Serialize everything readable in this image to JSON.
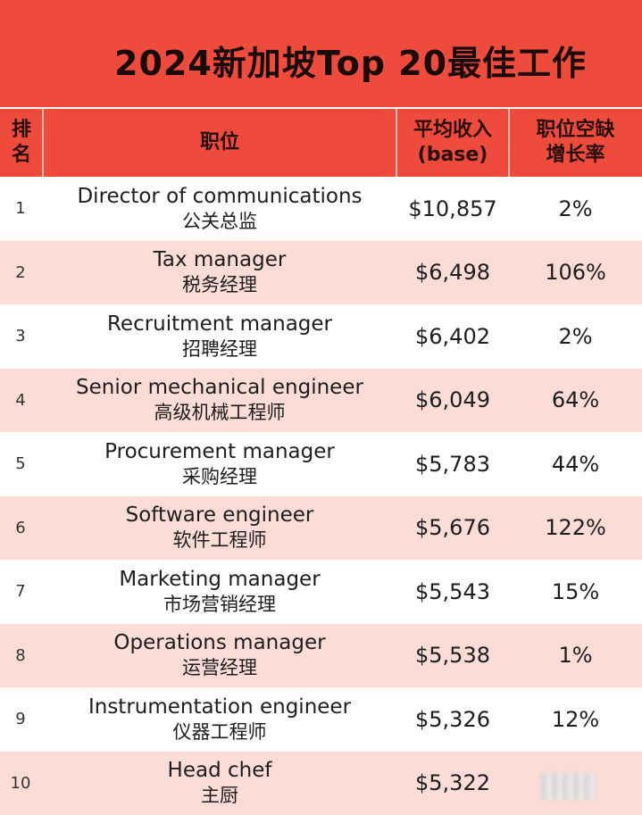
{
  "title": "2024新加坡Top 20最佳工作",
  "header": {
    "rank_line1": "排",
    "rank_line2": "名",
    "position": "职位",
    "salary_line1": "平均收入",
    "salary_line2": "(base)",
    "growth_line1": "职位空缺",
    "growth_line2": "增长率"
  },
  "rows": [
    {
      "rank": "1",
      "en": "Director of communications",
      "zh": "公关总监",
      "salary": "$10,857",
      "growth": "2%"
    },
    {
      "rank": "2",
      "en": "Tax manager",
      "zh": "税务经理",
      "salary": "$6,498",
      "growth": "106%"
    },
    {
      "rank": "3",
      "en": "Recruitment manager",
      "zh": "招聘经理",
      "salary": "$6,402",
      "growth": "2%"
    },
    {
      "rank": "4",
      "en": "Senior mechanical engineer",
      "zh": "高级机械工程师",
      "salary": "$6,049",
      "growth": "64%"
    },
    {
      "rank": "5",
      "en": "Procurement manager",
      "zh": "采购经理",
      "salary": "$5,783",
      "growth": "44%"
    },
    {
      "rank": "6",
      "en": "Software engineer",
      "zh": "软件工程师",
      "salary": "$5,676",
      "growth": "122%"
    },
    {
      "rank": "7",
      "en": "Marketing manager",
      "zh": "市场营销经理",
      "salary": "$5,543",
      "growth": "15%"
    },
    {
      "rank": "8",
      "en": "Operations manager",
      "zh": "运营经理",
      "salary": "$5,538",
      "growth": "1%"
    },
    {
      "rank": "9",
      "en": "Instrumentation engineer",
      "zh": "仪器工程师",
      "salary": "$5,326",
      "growth": "12%"
    },
    {
      "rank": "10",
      "en": "Head chef",
      "zh": "主厨",
      "salary": "$5,322",
      "growth": ""
    }
  ],
  "colors": {
    "header_red": "#ee4b3d",
    "row_pink": "#fbdcd6"
  }
}
